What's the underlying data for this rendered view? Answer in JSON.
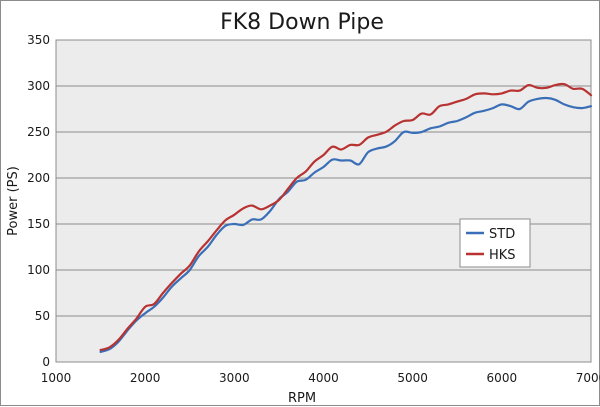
{
  "chart_data": {
    "type": "line",
    "title": "FK8 Down Pipe",
    "xlabel": "RPM",
    "ylabel": "Power (PS)",
    "xlim": [
      1000,
      7000
    ],
    "ylim": [
      0,
      350
    ],
    "xticks": [
      1000,
      2000,
      3000,
      4000,
      5000,
      6000,
      7000
    ],
    "yticks": [
      0,
      50,
      100,
      150,
      200,
      250,
      300,
      350
    ],
    "grid": "horizontal",
    "legend_position": "right",
    "series": [
      {
        "name": "STD",
        "color": "#3a6fb7",
        "points": [
          [
            1500,
            11
          ],
          [
            1600,
            14
          ],
          [
            1700,
            22
          ],
          [
            1800,
            34
          ],
          [
            1900,
            45
          ],
          [
            2000,
            53
          ],
          [
            2100,
            60
          ],
          [
            2200,
            70
          ],
          [
            2300,
            82
          ],
          [
            2400,
            91
          ],
          [
            2500,
            100
          ],
          [
            2600,
            115
          ],
          [
            2700,
            125
          ],
          [
            2800,
            138
          ],
          [
            2900,
            148
          ],
          [
            3000,
            150
          ],
          [
            3100,
            149
          ],
          [
            3200,
            155
          ],
          [
            3300,
            155
          ],
          [
            3400,
            164
          ],
          [
            3500,
            177
          ],
          [
            3600,
            185
          ],
          [
            3700,
            196
          ],
          [
            3800,
            198
          ],
          [
            3900,
            206
          ],
          [
            4000,
            212
          ],
          [
            4100,
            220
          ],
          [
            4200,
            219
          ],
          [
            4300,
            219
          ],
          [
            4400,
            215
          ],
          [
            4500,
            228
          ],
          [
            4600,
            232
          ],
          [
            4700,
            234
          ],
          [
            4800,
            240
          ],
          [
            4900,
            250
          ],
          [
            5000,
            249
          ],
          [
            5100,
            250
          ],
          [
            5200,
            254
          ],
          [
            5300,
            256
          ],
          [
            5400,
            260
          ],
          [
            5500,
            262
          ],
          [
            5600,
            266
          ],
          [
            5700,
            271
          ],
          [
            5800,
            273
          ],
          [
            5900,
            276
          ],
          [
            6000,
            280
          ],
          [
            6100,
            278
          ],
          [
            6200,
            275
          ],
          [
            6300,
            283
          ],
          [
            6400,
            286
          ],
          [
            6500,
            287
          ],
          [
            6600,
            285
          ],
          [
            6700,
            280
          ],
          [
            6800,
            277
          ],
          [
            6900,
            276
          ],
          [
            7000,
            278
          ]
        ]
      },
      {
        "name": "HKS",
        "color": "#b83232",
        "points": [
          [
            1500,
            13
          ],
          [
            1600,
            16
          ],
          [
            1700,
            24
          ],
          [
            1800,
            36
          ],
          [
            1900,
            47
          ],
          [
            2000,
            60
          ],
          [
            2100,
            63
          ],
          [
            2200,
            75
          ],
          [
            2300,
            86
          ],
          [
            2400,
            96
          ],
          [
            2500,
            105
          ],
          [
            2600,
            120
          ],
          [
            2700,
            131
          ],
          [
            2800,
            143
          ],
          [
            2900,
            154
          ],
          [
            3000,
            160
          ],
          [
            3100,
            167
          ],
          [
            3200,
            170
          ],
          [
            3300,
            166
          ],
          [
            3400,
            170
          ],
          [
            3500,
            176
          ],
          [
            3600,
            188
          ],
          [
            3700,
            200
          ],
          [
            3800,
            207
          ],
          [
            3900,
            218
          ],
          [
            4000,
            225
          ],
          [
            4100,
            234
          ],
          [
            4200,
            231
          ],
          [
            4300,
            236
          ],
          [
            4400,
            236
          ],
          [
            4500,
            244
          ],
          [
            4600,
            247
          ],
          [
            4700,
            250
          ],
          [
            4800,
            257
          ],
          [
            4900,
            262
          ],
          [
            5000,
            263
          ],
          [
            5100,
            270
          ],
          [
            5200,
            269
          ],
          [
            5300,
            278
          ],
          [
            5400,
            280
          ],
          [
            5500,
            283
          ],
          [
            5600,
            286
          ],
          [
            5700,
            291
          ],
          [
            5800,
            292
          ],
          [
            5900,
            291
          ],
          [
            6000,
            292
          ],
          [
            6100,
            295
          ],
          [
            6200,
            295
          ],
          [
            6300,
            301
          ],
          [
            6400,
            298
          ],
          [
            6500,
            298
          ],
          [
            6600,
            301
          ],
          [
            6700,
            302
          ],
          [
            6800,
            297
          ],
          [
            6900,
            297
          ],
          [
            7000,
            290
          ]
        ]
      }
    ]
  }
}
